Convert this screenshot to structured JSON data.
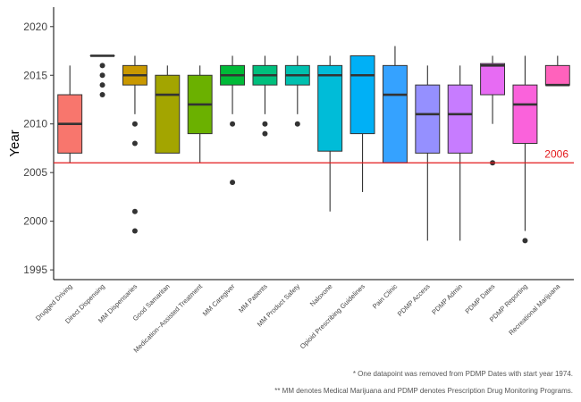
{
  "chart_data": {
    "type": "boxplot",
    "title": "",
    "xlabel": "",
    "ylabel": "Year",
    "ylim": [
      1994,
      2022
    ],
    "yticks": [
      1995,
      2000,
      2005,
      2010,
      2015,
      2020
    ],
    "grid": false,
    "legend": "none",
    "reference_line": {
      "value": 2006,
      "label": "2006",
      "color": "#e31a1c"
    },
    "boxes": [
      {
        "category": "Drugged Driving",
        "color": "#F8766D",
        "whisker_low": 2006,
        "q1": 2007,
        "median": 2010,
        "q3": 2013,
        "whisker_high": 2016,
        "outliers": []
      },
      {
        "category": "Direct Dispensing",
        "color": "#E58700",
        "whisker_low": 2017,
        "q1": 2017,
        "median": 2017,
        "q3": 2017,
        "whisker_high": 2017,
        "outliers": [
          2016,
          2015,
          2014,
          2013
        ]
      },
      {
        "category": "MM Dispensaries",
        "color": "#C99800",
        "whisker_low": 2011,
        "q1": 2014,
        "median": 2015,
        "q3": 2016,
        "whisker_high": 2017,
        "outliers": [
          2010,
          2008,
          2001,
          1999
        ]
      },
      {
        "category": "Good Samaritan",
        "color": "#A3A500",
        "whisker_low": 2007,
        "q1": 2007,
        "median": 2013,
        "q3": 2015,
        "whisker_high": 2016,
        "outliers": []
      },
      {
        "category": "Medication−Assisted Treatment",
        "color": "#6BB100",
        "whisker_low": 2006,
        "q1": 2009,
        "median": 2012,
        "q3": 2015,
        "whisker_high": 2016,
        "outliers": []
      },
      {
        "category": "MM Caregiver",
        "color": "#00BA38",
        "whisker_low": 2011,
        "q1": 2014,
        "median": 2015,
        "q3": 2016,
        "whisker_high": 2017,
        "outliers": [
          2010,
          2004
        ]
      },
      {
        "category": "MM Patients",
        "color": "#00BF7D",
        "whisker_low": 2011,
        "q1": 2014,
        "median": 2015,
        "q3": 2016,
        "whisker_high": 2017,
        "outliers": [
          2010,
          2009
        ]
      },
      {
        "category": "MM Product Safety",
        "color": "#00C0AF",
        "whisker_low": 2011,
        "q1": 2014,
        "median": 2015,
        "q3": 2016,
        "whisker_high": 2017,
        "outliers": [
          2010
        ]
      },
      {
        "category": "Naloxone",
        "color": "#00BCD8",
        "whisker_low": 2001,
        "q1": 2007.2,
        "median": 2015,
        "q3": 2016,
        "whisker_high": 2017,
        "outliers": []
      },
      {
        "category": "Opioid Prescribing Guidelines",
        "color": "#00B0F6",
        "whisker_low": 2003,
        "q1": 2009,
        "median": 2015,
        "q3": 2017,
        "whisker_high": 2017,
        "outliers": []
      },
      {
        "category": "Pain Clinic",
        "color": "#35A2FF",
        "whisker_low": 2006,
        "q1": 2006,
        "median": 2013,
        "q3": 2016,
        "whisker_high": 2018,
        "outliers": []
      },
      {
        "category": "PDMP Access",
        "color": "#9590FF",
        "whisker_low": 1998,
        "q1": 2007,
        "median": 2011,
        "q3": 2014,
        "whisker_high": 2016,
        "outliers": []
      },
      {
        "category": "PDMP Admin",
        "color": "#C77CFF",
        "whisker_low": 1998,
        "q1": 2007,
        "median": 2011,
        "q3": 2014,
        "whisker_high": 2016,
        "outliers": []
      },
      {
        "category": "PDMP Dates",
        "color": "#E76BF3",
        "whisker_low": 2010,
        "q1": 2013,
        "median": 2016,
        "q3": 2016.2,
        "whisker_high": 2017,
        "outliers": [
          2006
        ]
      },
      {
        "category": "PDMP Reporting",
        "color": "#FA62DB",
        "whisker_low": 1999,
        "q1": 2008,
        "median": 2012,
        "q3": 2014,
        "whisker_high": 2017,
        "outliers": [
          1998
        ]
      },
      {
        "category": "Recreational Marijuana",
        "color": "#FF62BC",
        "whisker_low": 2014,
        "q1": 2014,
        "median": 2014,
        "q3": 2016,
        "whisker_high": 2017,
        "outliers": []
      }
    ]
  },
  "footnotes": [
    "* One datapoint was removed from PDMP Dates with start year 1974.",
    "** MM denotes Medical Marijuana and PDMP denotes Prescription Drug Monitoring Programs."
  ]
}
